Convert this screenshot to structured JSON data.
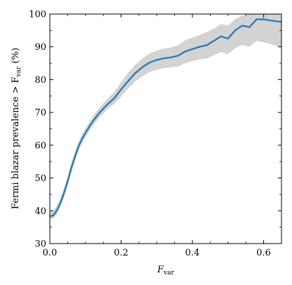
{
  "chart_data": {
    "type": "line",
    "xlabel_main": "F",
    "xlabel_sub": "var",
    "ylabel_main": "Fermi blazar prevalence > F",
    "ylabel_sub": "var",
    "ylabel_tail": " (%)",
    "xlim": [
      0.0,
      0.65
    ],
    "ylim": [
      30,
      100
    ],
    "x_ticks": [
      0.0,
      0.2,
      0.4,
      0.6
    ],
    "x_tick_labels": [
      "0.0",
      "0.2",
      "0.4",
      "0.6"
    ],
    "y_ticks": [
      30,
      40,
      50,
      60,
      70,
      80,
      90,
      100
    ],
    "y_tick_labels": [
      "30",
      "40",
      "50",
      "60",
      "70",
      "80",
      "90",
      "100"
    ],
    "grid": false,
    "colors": {
      "line": "#1f77b4",
      "band": "#d3d3d3"
    },
    "series": [
      {
        "x": [
          0.0,
          0.01,
          0.02,
          0.03,
          0.04,
          0.05,
          0.06,
          0.07,
          0.08,
          0.09,
          0.1,
          0.12,
          0.14,
          0.16,
          0.18,
          0.2,
          0.22,
          0.24,
          0.26,
          0.28,
          0.3,
          0.32,
          0.34,
          0.36,
          0.38,
          0.4,
          0.42,
          0.44,
          0.46,
          0.48,
          0.5,
          0.52,
          0.54,
          0.56,
          0.58,
          0.6,
          0.62,
          0.65
        ],
        "y": [
          38.3,
          38.6,
          40.2,
          42.5,
          45.5,
          49.0,
          53.0,
          56.3,
          59.5,
          61.8,
          63.8,
          67.2,
          70.0,
          72.3,
          74.2,
          77.0,
          79.6,
          82.0,
          83.8,
          85.2,
          86.0,
          86.5,
          86.8,
          87.3,
          88.6,
          89.3,
          90.0,
          90.5,
          91.8,
          93.2,
          92.5,
          95.0,
          96.5,
          96.0,
          98.4,
          98.4,
          98.0,
          97.6
        ],
        "lower": [
          37.5,
          37.6,
          39.0,
          41.2,
          44.0,
          47.5,
          51.5,
          55.0,
          58.2,
          60.5,
          62.4,
          65.8,
          68.6,
          70.8,
          72.5,
          74.8,
          77.3,
          79.5,
          81.0,
          82.3,
          83.0,
          83.5,
          83.8,
          84.0,
          85.0,
          85.6,
          86.2,
          86.4,
          87.4,
          88.4,
          87.8,
          89.6,
          90.6,
          90.0,
          91.8,
          91.4,
          90.8,
          89.8
        ],
        "upper": [
          39.5,
          40.0,
          41.6,
          44.0,
          47.0,
          50.5,
          54.5,
          57.8,
          61.0,
          63.2,
          65.2,
          68.7,
          71.6,
          74.0,
          76.1,
          79.2,
          82.2,
          84.5,
          86.5,
          88.0,
          88.8,
          89.5,
          89.8,
          90.5,
          92.0,
          92.8,
          93.6,
          94.5,
          95.5,
          97.0,
          96.5,
          98.5,
          99.5,
          100,
          100,
          100,
          100,
          100
        ]
      }
    ]
  }
}
